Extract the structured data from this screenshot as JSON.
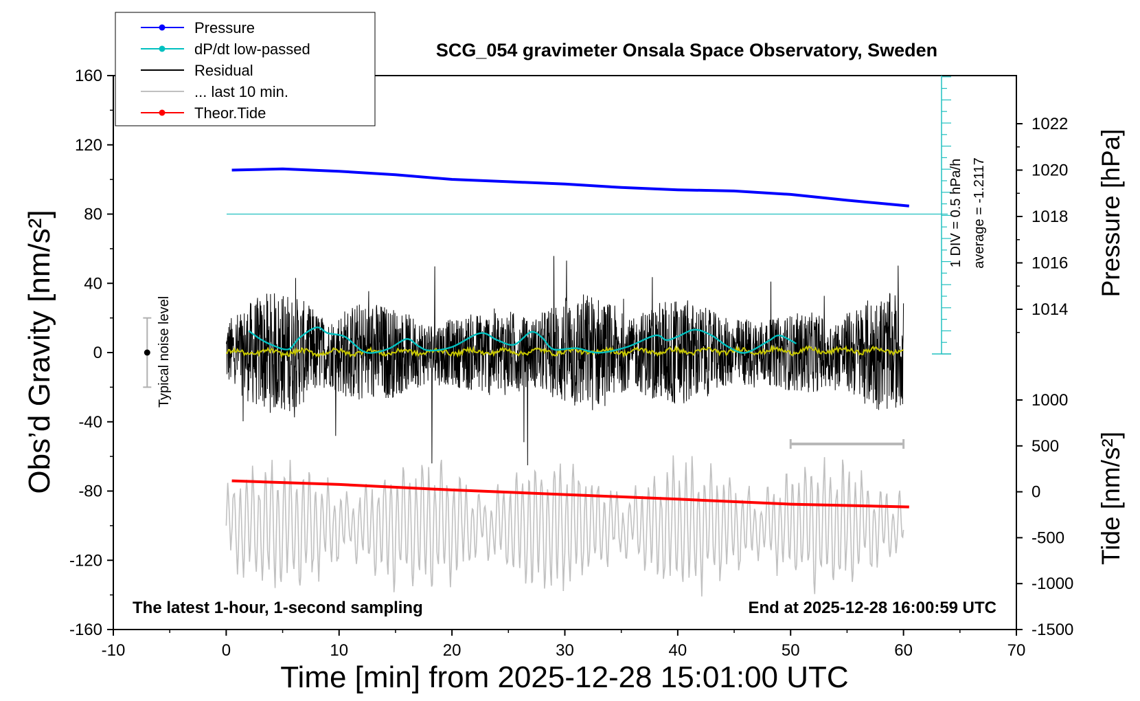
{
  "chart_data": {
    "type": "line",
    "title": "SCG_054 gravimeter Onsala Space Observatory, Sweden",
    "xlabel": "Time [min] from 2025-12-28 15:01:00 UTC",
    "ylabel_left": "Obs’d Gravity [nm/s²]",
    "ylabel_right_top": "Pressure [hPa]",
    "ylabel_right_bottom": "Tide [nm/s²]",
    "xlim": [
      -10,
      70
    ],
    "ylim": [
      -160,
      160
    ],
    "x_ticks": [
      "-10",
      "0",
      "10",
      "20",
      "30",
      "40",
      "50",
      "60",
      "70"
    ],
    "y_ticks": [
      "160",
      "120",
      "80",
      "40",
      "0",
      "-40",
      "-80",
      "-120",
      "-160"
    ],
    "pressure_ticks": [
      "1022",
      "1020",
      "1018",
      "1016",
      "1014"
    ],
    "tide_ticks": [
      "1000",
      "500",
      "0",
      "-500",
      "-1000",
      "-1500"
    ],
    "pressure_range": [
      1012,
      1024
    ],
    "tide_range": [
      -1500,
      1000
    ],
    "legend": {
      "placement": "top-left",
      "entries": [
        {
          "label": "Pressure",
          "color": "#0000ff",
          "marker": "dot"
        },
        {
          "label": "dP/dt low-passed",
          "color": "#00c0c0",
          "marker": "dot"
        },
        {
          "label": "Residual",
          "color": "#000000",
          "marker": "line"
        },
        {
          "label": "... last 10 min.",
          "color": "#c0c0c0",
          "marker": "line"
        },
        {
          "label": "Theor.Tide",
          "color": "#ff0000",
          "marker": "dot"
        }
      ]
    },
    "series": [
      {
        "name": "Pressure",
        "unit": "hPa",
        "color": "#0000ff",
        "x": [
          0.5,
          5,
          10,
          15,
          20,
          25,
          30,
          35,
          40,
          45,
          50,
          55,
          60.5
        ],
        "values": [
          1020.0,
          1020.05,
          1019.95,
          1019.8,
          1019.6,
          1019.5,
          1019.4,
          1019.25,
          1019.15,
          1019.1,
          1018.95,
          1018.7,
          1018.45
        ]
      },
      {
        "name": "dP/dt low-passed",
        "unit": "DIV",
        "color": "#00c0c0",
        "x": [
          2,
          3,
          4,
          5.5,
          6.5,
          8,
          9,
          10.5,
          12,
          13,
          14.5,
          16,
          17,
          18,
          20,
          22.5,
          24,
          25.5,
          27,
          28,
          29,
          31,
          33,
          35.5,
          38,
          39,
          40,
          41.5,
          43,
          44.5,
          46,
          48,
          49,
          50.5
        ],
        "values": [
          2.0,
          1.3,
          0.8,
          0.4,
          1.4,
          2.3,
          1.8,
          1.5,
          0.3,
          0.1,
          0.5,
          1.3,
          0.7,
          0.3,
          0.6,
          1.8,
          1.2,
          0.8,
          1.9,
          1.4,
          0.4,
          0.5,
          0.1,
          0.6,
          1.6,
          1.2,
          1.5,
          2.1,
          1.6,
          0.6,
          0.1,
          1.1,
          1.6,
          0.9
        ]
      },
      {
        "name": "Residual",
        "unit": "nm/s²",
        "color": "#000000",
        "noise_amplitude": 25
      },
      {
        "name": "... last 10 min.",
        "unit": "nm/s²",
        "color": "#c0c0c0",
        "offset": -100,
        "noise_amplitude": 18
      },
      {
        "name": "Theor.Tide",
        "unit": "nm/s²",
        "color": "#ff0000",
        "x": [
          0.5,
          10,
          20,
          30,
          40,
          50,
          60.5
        ],
        "values": [
          120,
          80,
          20,
          -30,
          -80,
          -135,
          -165
        ]
      }
    ],
    "dpdt_scale": {
      "line_at_y": 80,
      "label": "1 DIV = 0.5 hPa/h",
      "average_label": "average = -1.2117"
    },
    "noise_bar": {
      "x": -7,
      "center": 0,
      "half_range": 20,
      "label": "Typical noise level"
    },
    "last10_bar": {
      "x_start": 50,
      "x_end": 60
    },
    "annotation_left": "The latest 1-hour, 1-second sampling",
    "annotation_right": "End at 2025-12-28 16:00:59 UTC"
  }
}
